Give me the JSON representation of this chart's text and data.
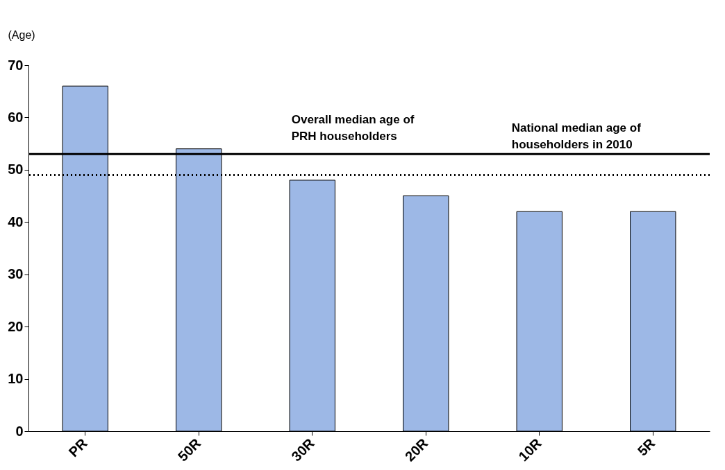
{
  "chart_data": {
    "type": "bar",
    "ylabel": "(Age)",
    "categories": [
      "PR",
      "50R",
      "30R",
      "20R",
      "10R",
      "5R"
    ],
    "values": [
      66,
      54,
      48,
      45,
      42,
      42
    ],
    "color": "#9db8e6",
    "ylim": [
      0,
      70
    ],
    "yticks": [
      0,
      10,
      20,
      30,
      40,
      50,
      60,
      70
    ],
    "grid": false,
    "ref_lines": [
      {
        "axis": "y",
        "value": 53,
        "label": "Overall median age of PRH householders",
        "line_style": "solid",
        "color": "#000000"
      },
      {
        "axis": "y",
        "value": 49,
        "label": "National median age of householders in 2010",
        "line_style": "dotted",
        "color": "#000000"
      }
    ]
  }
}
